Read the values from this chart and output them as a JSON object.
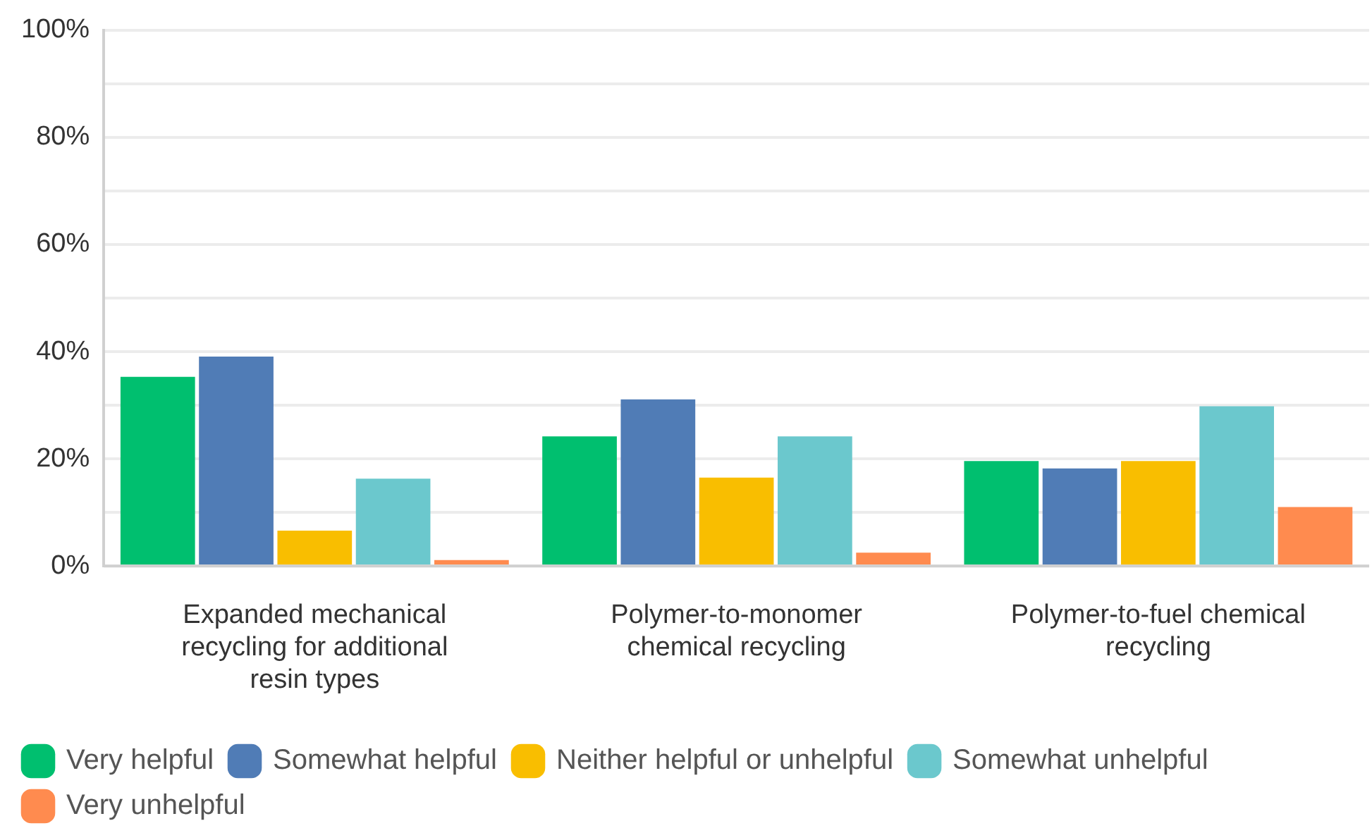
{
  "chart_data": {
    "type": "bar",
    "categories": [
      "Expanded mechanical recycling for additional resin types",
      "Polymer-to-monomer chemical recycling",
      "Polymer-to-fuel chemical recycling"
    ],
    "series": [
      {
        "name": "Very helpful",
        "color": "#00bf6f",
        "values": [
          35.3,
          24.2,
          19.6
        ]
      },
      {
        "name": "Somewhat helpful",
        "color": "#507cb6",
        "values": [
          39.1,
          31.1,
          18.2
        ]
      },
      {
        "name": "Neither helpful or unhelpful",
        "color": "#f9be00",
        "values": [
          6.6,
          16.5,
          19.6
        ]
      },
      {
        "name": "Somewhat unhelpful",
        "color": "#6bc8cd",
        "values": [
          16.3,
          24.2,
          29.8
        ]
      },
      {
        "name": "Very unhelpful",
        "color": "#ff8b4f",
        "values": [
          1.1,
          2.5,
          11.0
        ]
      }
    ],
    "ylim": [
      0,
      100
    ],
    "yticks": [
      {
        "value": 0,
        "label": "0%"
      },
      {
        "value": 10,
        "label": null
      },
      {
        "value": 20,
        "label": "20%"
      },
      {
        "value": 30,
        "label": null
      },
      {
        "value": 40,
        "label": "40%"
      },
      {
        "value": 50,
        "label": null
      },
      {
        "value": 60,
        "label": "60%"
      },
      {
        "value": 70,
        "label": null
      },
      {
        "value": 80,
        "label": "80%"
      },
      {
        "value": 90,
        "label": null
      },
      {
        "value": 100,
        "label": "100%"
      }
    ],
    "grid": "y",
    "legend": "bottom"
  }
}
